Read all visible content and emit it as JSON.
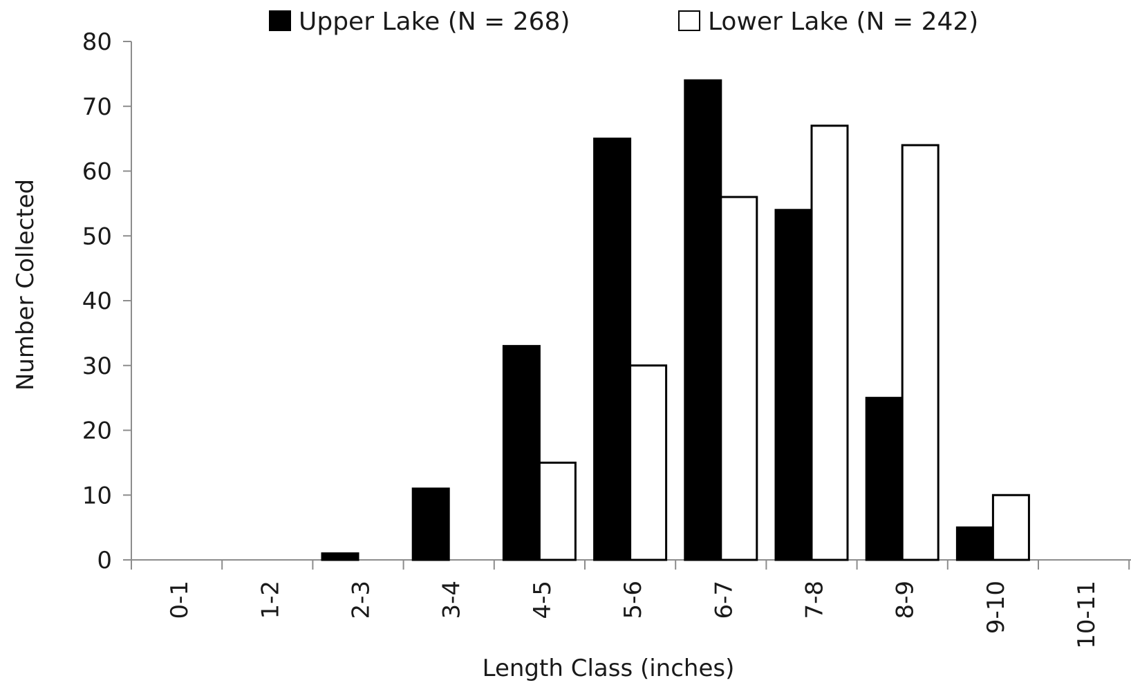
{
  "chart_data": {
    "type": "bar",
    "title": "",
    "xlabel": "Length Class (inches)",
    "ylabel": "Number Collected",
    "ylim": [
      0,
      80
    ],
    "yticks": [
      "0",
      "10",
      "20",
      "30",
      "40",
      "50",
      "60",
      "70",
      "80"
    ],
    "categories": [
      "0-1",
      "1-2",
      "2-3",
      "3-4",
      "4-5",
      "5-6",
      "6-7",
      "7-8",
      "8-9",
      "9-10",
      "10-11"
    ],
    "series": [
      {
        "name": "Upper Lake (N = 268)",
        "color": "#000000",
        "values": [
          0,
          0,
          1,
          11,
          33,
          65,
          74,
          54,
          25,
          5,
          0
        ]
      },
      {
        "name": "Lower Lake (N = 242)",
        "color": "#ffffff",
        "values": [
          0,
          0,
          0,
          0,
          15,
          30,
          56,
          67,
          64,
          10,
          0
        ]
      }
    ],
    "legend_position": "top",
    "grid": false
  }
}
